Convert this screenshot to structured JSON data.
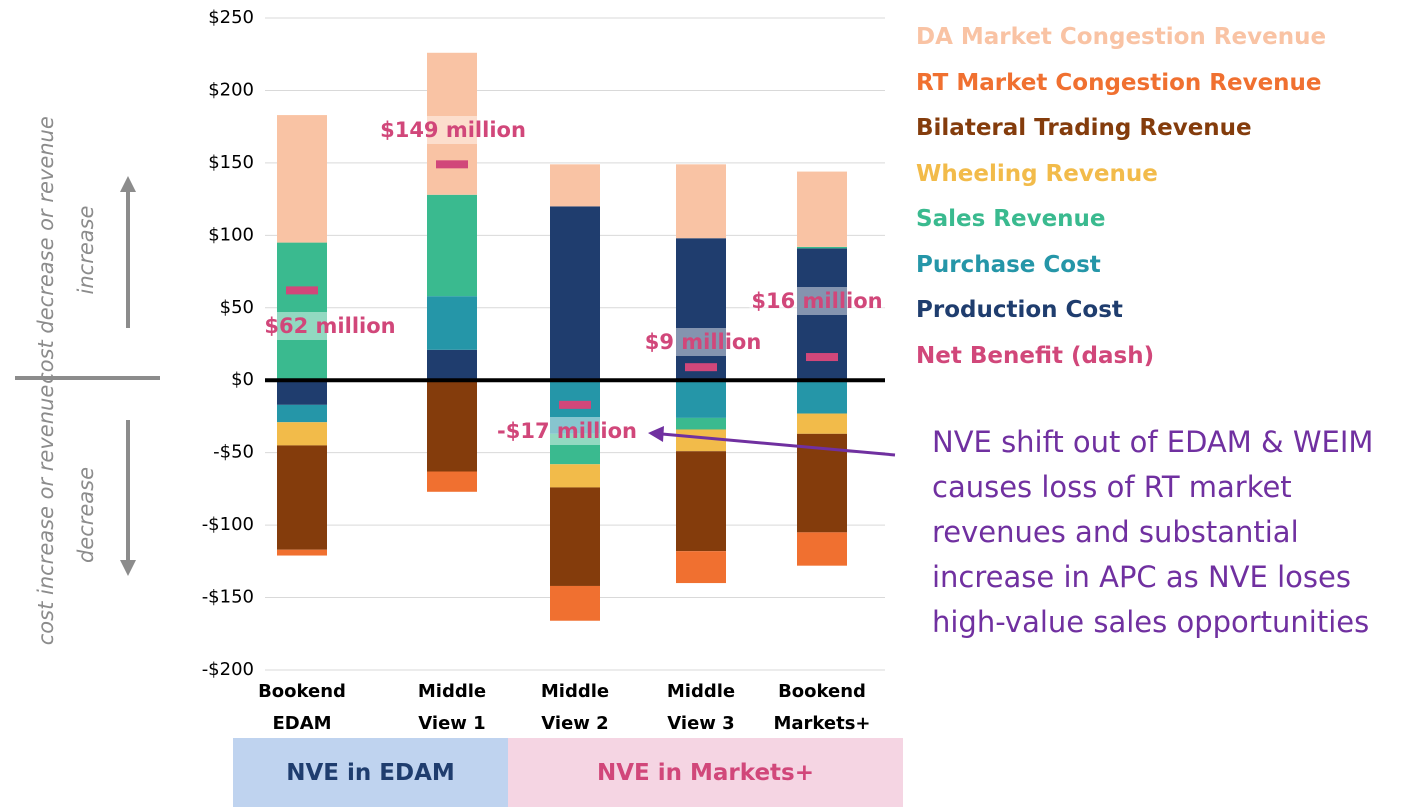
{
  "chart_data": {
    "type": "stacked_bar",
    "categories": [
      "Bookend EDAM",
      "Middle View 1",
      "Middle View 2",
      "Middle View 3",
      "Bookend Markets+"
    ],
    "series": [
      {
        "name": "DA Market Congestion Revenue",
        "color": "#f9c3a4",
        "values": [
          88,
          98,
          29,
          51,
          52
        ]
      },
      {
        "name": "RT Market Congestion Revenue",
        "color": "#f07030",
        "values": [
          -4,
          -14,
          -24,
          -22,
          -23
        ]
      },
      {
        "name": "Bilateral Trading Revenue",
        "color": "#843c0c",
        "values": [
          -72,
          -63,
          -68,
          -69,
          -68
        ]
      },
      {
        "name": "Wheeling Revenue",
        "color": "#f2bb4a",
        "values": [
          -16,
          0,
          -16,
          -15,
          -14
        ]
      },
      {
        "name": "Sales Revenue",
        "color": "#3aba8f",
        "values": [
          95,
          70,
          -21,
          -8,
          1
        ]
      },
      {
        "name": "Purchase Cost",
        "color": "#2596a8",
        "values": [
          -12,
          37,
          -37,
          -26,
          -23
        ]
      },
      {
        "name": "Production Cost",
        "color": "#1f3d6e",
        "values": [
          -17,
          21,
          120,
          98,
          91
        ]
      }
    ],
    "net_benefit": {
      "name": "Net Benefit (dash)",
      "color": "#d1477a",
      "values": [
        62,
        149,
        -17,
        9,
        16
      ],
      "value_labels": [
        "$62 million",
        "$149 million",
        "-$17 million",
        "$9 million",
        "$16 million"
      ]
    },
    "ylim": [
      -200,
      250
    ],
    "yticks": [
      {
        "value": -200,
        "label": "-$200"
      },
      {
        "value": -150,
        "label": "-$150"
      },
      {
        "value": -100,
        "label": "-$100"
      },
      {
        "value": -50,
        "label": "-$50"
      },
      {
        "value": 0,
        "label": "$0"
      },
      {
        "value": 50,
        "label": "$50"
      },
      {
        "value": 100,
        "label": "$100"
      },
      {
        "value": 150,
        "label": "$150"
      },
      {
        "value": 200,
        "label": "$200"
      },
      {
        "value": 250,
        "label": "$250"
      }
    ],
    "grid": true,
    "axis_notes": [
      "cost decrease or revenue increase",
      "cost increase or revenue decrease"
    ],
    "groups": [
      "NVE in EDAM",
      "NVE in Markets+"
    ],
    "annotation": "NVE shift out of EDAM & WEIM causes loss of RT market revenues and substantial increase in APC as NVE loses high-value sales opportunities"
  }
}
